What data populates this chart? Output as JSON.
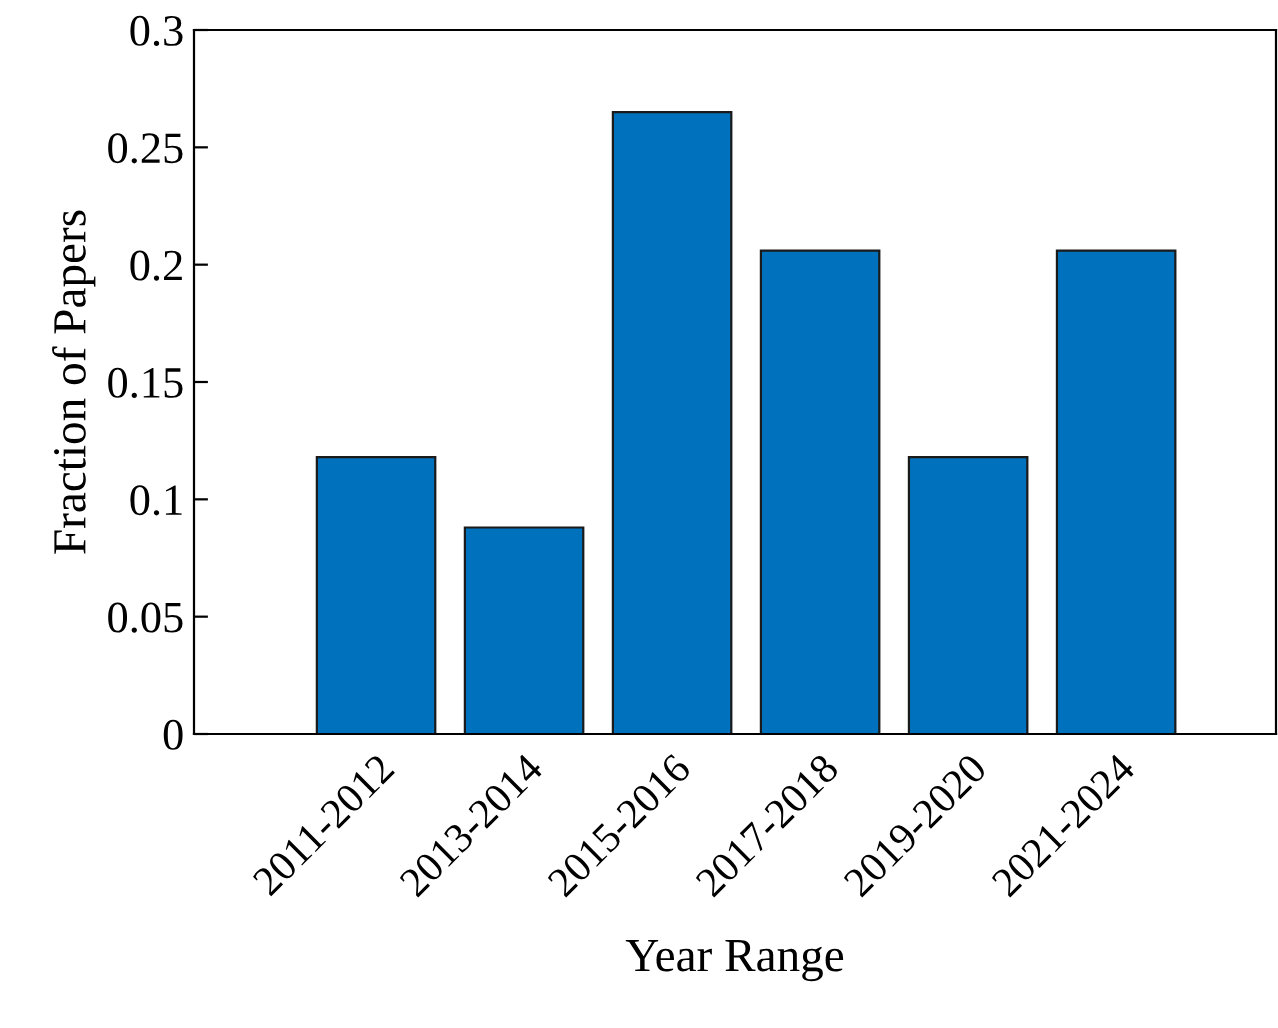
{
  "chart_data": {
    "type": "bar",
    "xlabel": "Year Range",
    "ylabel": "Fraction of Papers",
    "categories": [
      "2011-2012",
      "2013-2014",
      "2015-2016",
      "2017-2018",
      "2019-2020",
      "2021-2024"
    ],
    "values": [
      0.118,
      0.088,
      0.265,
      0.206,
      0.118,
      0.206
    ],
    "color": "#0072bd",
    "ylim": [
      0,
      0.3
    ],
    "yticks": [
      0,
      0.05,
      0.1,
      0.15,
      0.2,
      0.25,
      0.3
    ],
    "grid": false
  }
}
